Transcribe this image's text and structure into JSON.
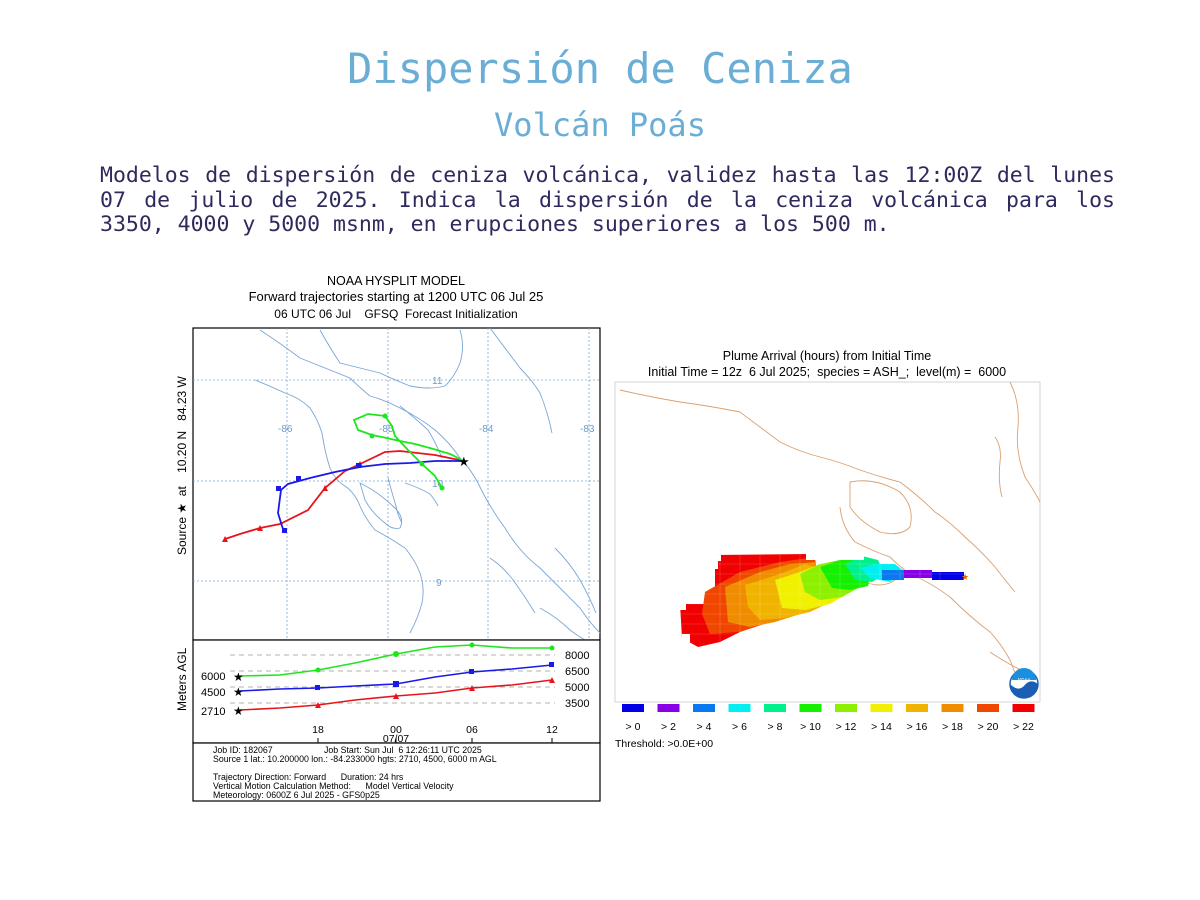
{
  "page": {
    "title": "Dispersión de Ceniza",
    "subtitle": "Volcán Poás",
    "description": "Modelos de dispersión de ceniza volcánica, validez hasta las 12:00Z del lunes 07 de julio de 2025. Indica la dispersión de la ceniza volcánica para los 3350, 4000 y 5000 msnm, en erupciones superiores a los 500 m."
  },
  "trajectory_panel": {
    "header": [
      "NOAA HYSPLIT MODEL",
      "Forward trajectories starting at 1200 UTC 06 Jul 25",
      "06 UTC 06 Jul    GFSQ  Forecast Initialization"
    ],
    "source_label": "Source ★  at    10.20 N   84.23 W",
    "lon_labels": [
      "-86",
      "-85",
      "-84",
      "-83"
    ],
    "lat_labels": [
      "11",
      "10",
      "9"
    ],
    "yaxis_label": "Meters AGL",
    "height_labels_left": [
      "6000",
      "4500",
      "2710"
    ],
    "height_labels_right": [
      "8000",
      "6500",
      "5000",
      "3500"
    ],
    "time_labels": [
      "18",
      "00",
      "06",
      "12"
    ],
    "date_label": "07/07",
    "info_lines": [
      "Job ID: 182067                     Job Start: Sun Jul  6 12:26:11 UTC 2025",
      "Source 1 lat.: 10.200000  lon.: -84.233000  hgts: 2710, 4500, 6000 m AGL",
      "",
      "Trajectory Direction: Forward      Duration: 24 hrs",
      "Vertical Motion Calculation Method:      Model Vertical Velocity",
      "Meteorology: 0600Z 6 Jul 2025 - GFS0p25"
    ],
    "series_colors": {
      "red": "#e8141c",
      "blue": "#1a1ae6",
      "green": "#1ee61e"
    }
  },
  "plume_panel": {
    "header": [
      "Plume Arrival (hours) from Initial Time",
      "Initial Time = 12z  6 Jul 2025;  species = ASH_;  level(m) =  6000"
    ],
    "legend": [
      {
        "label": "> 0",
        "color": "#0000e6"
      },
      {
        "label": "> 2",
        "color": "#8a00e6"
      },
      {
        "label": "> 4",
        "color": "#0a78f0"
      },
      {
        "label": "> 6",
        "color": "#00f0f0"
      },
      {
        "label": "> 8",
        "color": "#00f08c"
      },
      {
        "label": "> 10",
        "color": "#14f000"
      },
      {
        "label": "> 12",
        "color": "#8cf000"
      },
      {
        "label": "> 14",
        "color": "#f0f000"
      },
      {
        "label": "> 16",
        "color": "#f0b400"
      },
      {
        "label": "> 18",
        "color": "#f08c00"
      },
      {
        "label": "> 20",
        "color": "#f04600"
      },
      {
        "label": "> 22",
        "color": "#f00000"
      }
    ],
    "threshold": "Threshold: >0.0E+00",
    "logo_text": "NOAA"
  }
}
